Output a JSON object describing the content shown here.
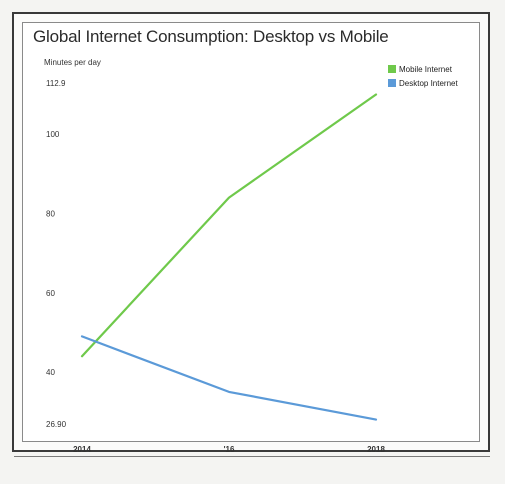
{
  "chart_data": {
    "type": "line",
    "title": "Global Internet Consumption: Desktop vs Mobile",
    "ylabel": "Minutes per day",
    "xlabel": "",
    "x": [
      2014,
      2016,
      2018
    ],
    "x_tick_labels": [
      "2014",
      "'16",
      "2018"
    ],
    "y_ticks": [
      26.9,
      40,
      60,
      80,
      100,
      112.9
    ],
    "y_tick_labels": [
      "26.90",
      "40",
      "60",
      "80",
      "100",
      "112.9"
    ],
    "ylim": [
      26.9,
      112.9
    ],
    "grid": false,
    "legend_position": "top-right",
    "series": [
      {
        "name": "Mobile Internet",
        "color": "#6fc94b",
        "values": [
          44,
          84,
          110
        ]
      },
      {
        "name": "Desktop Internet",
        "color": "#5b9ad8",
        "values": [
          49,
          35,
          28
        ]
      }
    ]
  }
}
